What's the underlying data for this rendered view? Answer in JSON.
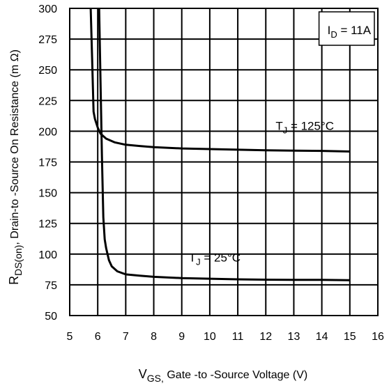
{
  "chart_data": {
    "type": "line",
    "title": "",
    "xlabel": {
      "main": "V",
      "sub": "GS,",
      "rest": " Gate -to -Source Voltage  (V)"
    },
    "ylabel": {
      "main": "R",
      "sub": "DS(on)",
      "rest": ",  Drain-to -Source On Resistance (m Ω)"
    },
    "xlim": [
      5,
      16
    ],
    "ylim": [
      50,
      300
    ],
    "xticks": [
      5,
      6,
      7,
      8,
      9,
      10,
      11,
      12,
      13,
      14,
      15,
      16
    ],
    "yticks": [
      50,
      75,
      100,
      125,
      150,
      175,
      200,
      225,
      250,
      275,
      300
    ],
    "grid": true,
    "annotation": {
      "main": "I",
      "sub": "D",
      "rest": " = 11A"
    },
    "series": [
      {
        "name": "T_J = 125°C",
        "label": {
          "main": "T",
          "sub": "J",
          "rest": " = 125°C"
        },
        "x": [
          5.75,
          5.8,
          5.85,
          5.9,
          6.0,
          6.1,
          6.3,
          6.6,
          7.0,
          7.5,
          8.0,
          9.0,
          10.0,
          11.0,
          12.0,
          13.0,
          14.0,
          15.0
        ],
        "y": [
          300,
          260,
          216,
          210,
          203,
          198,
          194,
          191,
          189,
          188,
          187,
          186,
          185.5,
          185,
          184.5,
          184.2,
          184,
          183.5
        ]
      },
      {
        "name": "T_J = 25°C",
        "label": {
          "main": "T",
          "sub": "J",
          "rest": " = 25°C"
        },
        "x": [
          6.05,
          6.1,
          6.15,
          6.2,
          6.25,
          6.3,
          6.4,
          6.5,
          6.7,
          7.0,
          7.5,
          8.0,
          9.0,
          10.0,
          11.0,
          12.0,
          13.0,
          14.0,
          15.0
        ],
        "y": [
          300,
          240,
          180,
          130,
          112,
          105,
          95,
          90,
          86,
          83.5,
          82.5,
          81.5,
          80.5,
          80,
          79.5,
          79.2,
          79,
          79,
          78.8
        ]
      }
    ]
  }
}
